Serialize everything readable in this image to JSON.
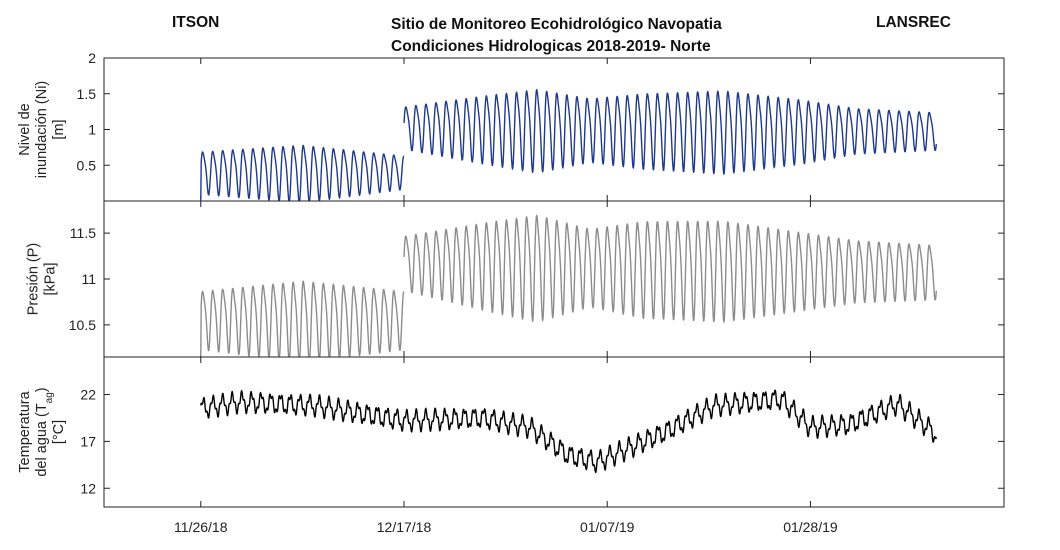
{
  "header": {
    "left": "ITSON",
    "title_line1": "Sitio de Monitoreo Ecohidrológico Navopatia",
    "title_line2": "Condiciones Hidrologicas 2018-2019- Norte",
    "right": "LANSREC"
  },
  "colors": {
    "inundation": "#1f3a8a",
    "pressure": "#8c8c8c",
    "temperature": "#000000"
  },
  "chart_data": [
    {
      "type": "line",
      "ylabel_line1": "Nivel de",
      "ylabel_line2": "inundación (Ni)",
      "ylabel_line3": "[m]",
      "ylim": [
        0,
        2
      ],
      "yticks": [
        "0.5",
        "1",
        "1.5",
        "2"
      ],
      "ytick_values": [
        0.5,
        1,
        1.5,
        2
      ],
      "xticks": [
        "11/26/18",
        "12/17/18",
        "01/07/19",
        "01/28/19"
      ],
      "xlim": [
        "2018-11-16",
        "2019-02-17"
      ],
      "series": [
        {
          "segments": [
            {
              "x_start": "2018-11-26",
              "x_end": "2018-12-17",
              "mean_start": 0.42,
              "mean_end": 0.42,
              "amp": [
                [
                  0,
                  0.28
                ],
                [
                  0.5,
                  0.38
                ],
                [
                  1,
                  0.22
                ]
              ],
              "period_days": 1.04,
              "start_value": 0.02
            },
            {
              "x_start": "2018-12-17",
              "x_end": "2019-02-10",
              "mean_start": 1.05,
              "mean_end": 1.0,
              "amp": [
                [
                  0,
                  0.28
                ],
                [
                  0.15,
                  0.45
                ],
                [
                  0.25,
                  0.55
                ],
                [
                  0.35,
                  0.42
                ],
                [
                  0.45,
                  0.5
                ],
                [
                  0.6,
                  0.55
                ],
                [
                  0.75,
                  0.42
                ],
                [
                  0.85,
                  0.3
                ],
                [
                  1,
                  0.25
                ]
              ],
              "period_days": 1.04
            }
          ]
        }
      ]
    },
    {
      "type": "line",
      "ylabel_line1": "Presión (P)",
      "ylabel_line2": "[kPa]",
      "ylim": [
        10.15,
        11.85
      ],
      "yticks": [
        "10.5",
        "11",
        "11.5"
      ],
      "ytick_values": [
        10.5,
        11,
        11.5
      ],
      "xticks": [
        "11/26/18",
        "12/17/18",
        "01/07/19",
        "01/28/19"
      ],
      "xlim": [
        "2018-11-16",
        "2019-02-17"
      ],
      "series": [
        {
          "segments": [
            {
              "x_start": "2018-11-26",
              "x_end": "2018-12-17",
              "mean_start": 10.58,
              "mean_end": 10.58,
              "amp": [
                [
                  0,
                  0.3
                ],
                [
                  0.5,
                  0.42
                ],
                [
                  1,
                  0.3
                ]
              ],
              "period_days": 1.04,
              "start_value": 10.16
            },
            {
              "x_start": "2018-12-17",
              "x_end": "2019-02-10",
              "mean_start": 11.2,
              "mean_end": 11.1,
              "amp": [
                [
                  0,
                  0.28
                ],
                [
                  0.15,
                  0.45
                ],
                [
                  0.25,
                  0.55
                ],
                [
                  0.35,
                  0.4
                ],
                [
                  0.45,
                  0.5
                ],
                [
                  0.6,
                  0.52
                ],
                [
                  0.75,
                  0.4
                ],
                [
                  0.85,
                  0.32
                ],
                [
                  1,
                  0.28
                ]
              ],
              "period_days": 1.04
            }
          ]
        }
      ]
    },
    {
      "type": "line",
      "ylabel_line1": "Temperatura",
      "ylabel_line2": "del agua (T",
      "ylabel_sub": "ag",
      "ylabel_line2_end": ")",
      "ylabel_line3": "[°C]",
      "ylim": [
        10,
        26
      ],
      "yticks": [
        "12",
        "17",
        "22"
      ],
      "ytick_values": [
        12,
        17,
        22
      ],
      "xticks": [
        "11/26/18",
        "12/17/18",
        "01/07/19",
        "01/28/19"
      ],
      "xlim": [
        "2018-11-16",
        "2019-02-17"
      ],
      "series": [
        {
          "trend": [
            [
              "2018-11-26",
              20.5
            ],
            [
              "2018-11-30",
              21.2
            ],
            [
              "2018-12-08",
              20.8
            ],
            [
              "2018-12-17",
              19.2
            ],
            [
              "2018-12-25",
              19.5
            ],
            [
              "2018-12-30",
              18.5
            ],
            [
              "2019-01-03",
              15.5
            ],
            [
              "2019-01-06",
              14.8
            ],
            [
              "2019-01-13",
              18.0
            ],
            [
              "2019-01-18",
              20.8
            ],
            [
              "2019-01-25",
              21.5
            ],
            [
              "2019-01-28",
              18.5
            ],
            [
              "2019-02-01",
              18.8
            ],
            [
              "2019-02-06",
              21.0
            ],
            [
              "2019-02-10",
              17.8
            ]
          ],
          "daily_amp": 0.9
        }
      ]
    }
  ]
}
